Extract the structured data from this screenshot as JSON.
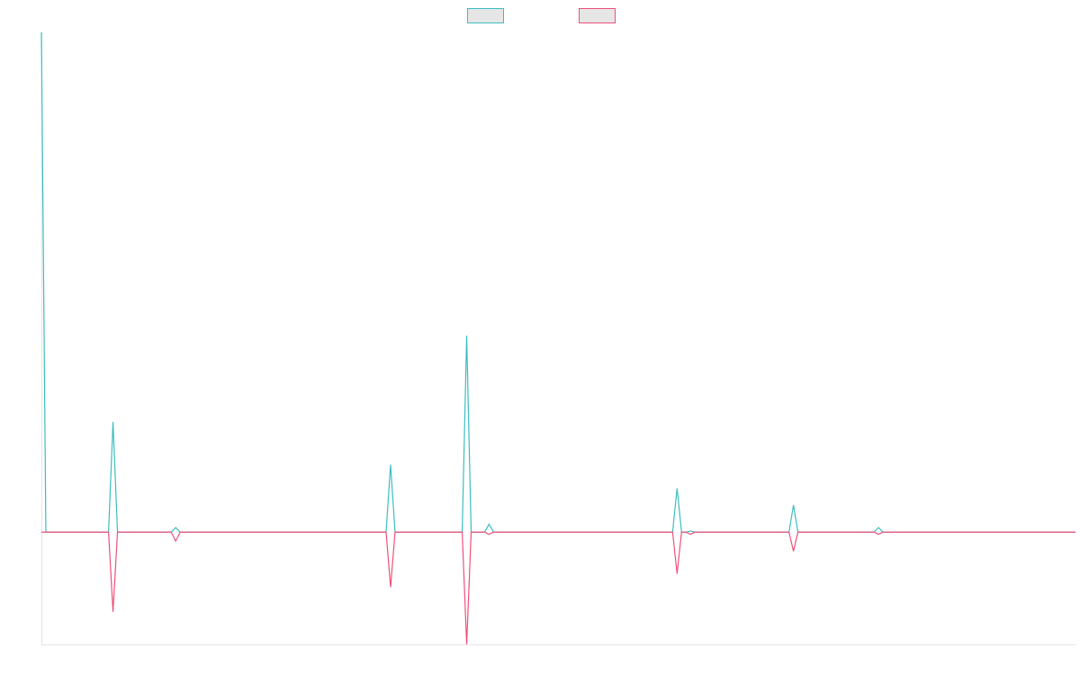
{
  "chart_data": {
    "type": "line",
    "title": "",
    "xlabel": "",
    "ylabel": "",
    "legend_position": "top-center",
    "grid": false,
    "x_count": 232,
    "ylim": [
      -1,
      4.45
    ],
    "series": [
      {
        "name": "",
        "color": "#3dbdc0",
        "fill": "#e6e6e6",
        "points": [
          [
            0,
            4.45
          ],
          [
            1,
            0
          ],
          [
            15,
            0
          ],
          [
            16,
            0.98
          ],
          [
            17,
            0
          ],
          [
            29,
            0
          ],
          [
            30,
            0.04
          ],
          [
            31,
            0
          ],
          [
            77,
            0
          ],
          [
            78,
            0.6
          ],
          [
            79,
            0
          ],
          [
            94,
            0
          ],
          [
            95,
            1.75
          ],
          [
            96,
            0
          ],
          [
            99,
            0
          ],
          [
            100,
            0.07
          ],
          [
            101,
            0
          ],
          [
            141,
            0
          ],
          [
            142,
            0.39
          ],
          [
            143,
            0
          ],
          [
            144,
            0
          ],
          [
            145,
            0.01
          ],
          [
            146,
            0
          ],
          [
            167,
            0
          ],
          [
            168,
            0.24
          ],
          [
            169,
            0
          ],
          [
            186,
            0
          ],
          [
            187,
            0.04
          ],
          [
            188,
            0
          ],
          [
            231,
            0
          ]
        ]
      },
      {
        "name": "",
        "color": "#f0507a",
        "fill": "#e6e6e6",
        "points": [
          [
            0,
            0
          ],
          [
            15,
            0
          ],
          [
            16,
            -0.71
          ],
          [
            17,
            0
          ],
          [
            29,
            0
          ],
          [
            30,
            -0.08
          ],
          [
            31,
            0
          ],
          [
            77,
            0
          ],
          [
            78,
            -0.49
          ],
          [
            79,
            0
          ],
          [
            94,
            0
          ],
          [
            95,
            -1.0
          ],
          [
            96,
            0
          ],
          [
            99,
            0
          ],
          [
            100,
            -0.02
          ],
          [
            101,
            0
          ],
          [
            141,
            0
          ],
          [
            142,
            -0.37
          ],
          [
            143,
            0
          ],
          [
            144,
            0
          ],
          [
            145,
            -0.02
          ],
          [
            146,
            0
          ],
          [
            167,
            0
          ],
          [
            168,
            -0.17
          ],
          [
            169,
            0
          ],
          [
            186,
            0
          ],
          [
            187,
            -0.02
          ],
          [
            188,
            0
          ],
          [
            231,
            0
          ]
        ]
      }
    ]
  }
}
